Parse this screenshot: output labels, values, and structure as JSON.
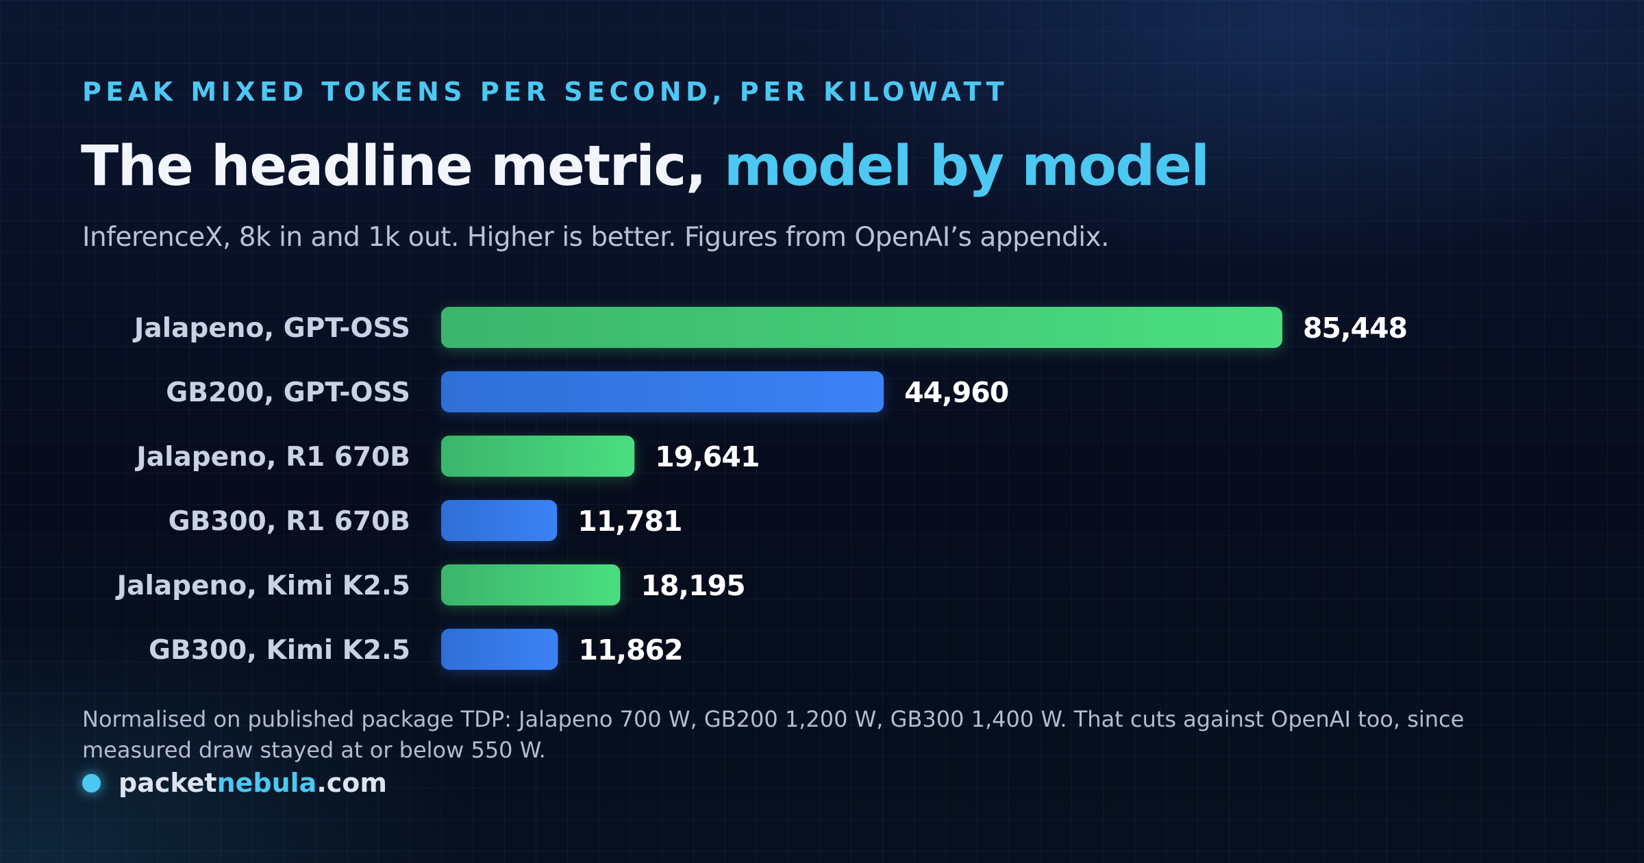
{
  "header": {
    "eyebrow": "PEAK MIXED TOKENS PER SECOND, PER KILOWATT",
    "title_main": "The headline metric, ",
    "title_accent": "model by model",
    "subtitle": "InferenceX, 8k in and 1k out. Higher is better. Figures from OpenAI’s appendix."
  },
  "chart_data": {
    "type": "bar",
    "orientation": "horizontal",
    "categories": [
      "Jalapeno, GPT-OSS",
      "GB200, GPT-OSS",
      "Jalapeno, R1 670B",
      "GB300, R1 670B",
      "Jalapeno, Kimi K2.5",
      "GB300, Kimi K2.5"
    ],
    "values": [
      85448,
      44960,
      19641,
      11781,
      18195,
      11862
    ],
    "value_labels": [
      "85,448",
      "44,960",
      "19,641",
      "11,781",
      "18,195",
      "11,862"
    ],
    "series_color_keys": [
      "green",
      "blue",
      "green",
      "blue",
      "green",
      "blue"
    ],
    "colors": {
      "green_start": "#3cb56c",
      "green_end": "#4ade80",
      "blue_start": "#2f6fd6",
      "blue_end": "#3b82f6"
    },
    "xlim": [
      0,
      85448
    ],
    "grid": false,
    "legend": "none"
  },
  "footnote": "Normalised on published package TDP: Jalapeno 700 W, GB200 1,200 W, GB300 1,400 W. That cuts against OpenAI too, since measured draw stayed at or below 550 W.",
  "brand": {
    "prefix": "packet",
    "accent": "nebula",
    "suffix": ".com",
    "accent_color": "#4cc8f2"
  }
}
